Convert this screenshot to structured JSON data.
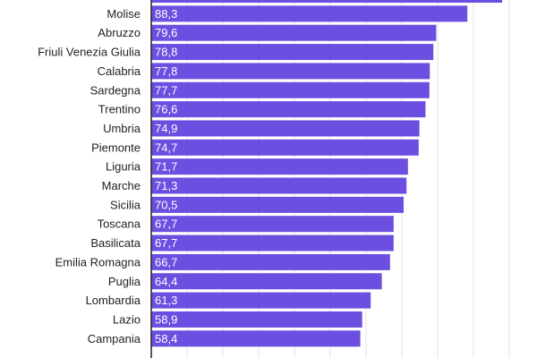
{
  "chart_data": {
    "type": "bar",
    "orientation": "horizontal",
    "categories": [
      "",
      "Molise",
      "Abruzzo",
      "Friuli Venezia Giulia",
      "Calabria",
      "Sardegna",
      "Trentino",
      "Umbria",
      "Piemonte",
      "Liguria",
      "Marche",
      "Sicilia",
      "Toscana",
      "Basilicata",
      "Emilia Romagna",
      "Puglia",
      "Lombardia",
      "Lazio",
      "Campania"
    ],
    "value_labels": [
      "",
      "88,3",
      "79,6",
      "78,8",
      "77,8",
      "77,7",
      "76,6",
      "74,9",
      "74,7",
      "71,7",
      "71,3",
      "70,5",
      "67,7",
      "67,7",
      "66,7",
      "64,4",
      "61,3",
      "58,9",
      "58,4"
    ],
    "values": [
      98.0,
      88.3,
      79.6,
      78.8,
      77.8,
      77.7,
      76.6,
      74.9,
      74.7,
      71.7,
      71.3,
      70.5,
      67.7,
      67.7,
      66.7,
      64.4,
      61.3,
      58.9,
      58.4
    ],
    "xlim": [
      0,
      100
    ],
    "grid": true,
    "bar_color": "#6c4ee0",
    "grid_color": "#e3e3e3",
    "axis_color": "#222222"
  }
}
